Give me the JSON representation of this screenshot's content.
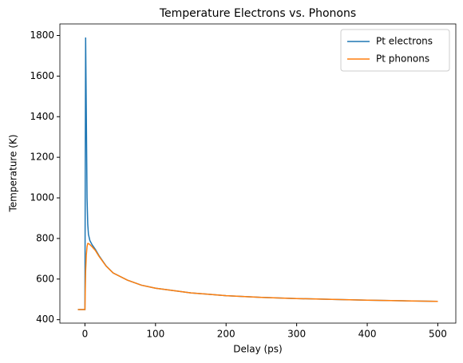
{
  "chart_data": {
    "type": "line",
    "title": "Temperature Electrons vs. Phonons",
    "xlabel": "Delay (ps)",
    "ylabel": "Temperature (K)",
    "x": [
      -10,
      -5,
      0,
      0.5,
      1,
      2,
      3,
      4,
      5,
      7,
      10,
      15,
      20,
      30,
      40,
      60,
      80,
      100,
      150,
      200,
      250,
      300,
      350,
      400,
      450,
      500
    ],
    "series": [
      {
        "name": "Pt electrons",
        "color": "#1f77b4",
        "values": [
          450,
          450,
          450,
          1200,
          1790,
          1400,
          1000,
          870,
          820,
          790,
          770,
          745,
          715,
          665,
          630,
          595,
          570,
          555,
          532,
          518,
          510,
          504,
          500,
          496,
          493,
          490
        ]
      },
      {
        "name": "Pt phonons",
        "color": "#ff7f0e",
        "values": [
          450,
          450,
          450,
          550,
          640,
          720,
          760,
          775,
          775,
          770,
          760,
          740,
          712,
          664,
          630,
          595,
          570,
          555,
          532,
          518,
          510,
          504,
          500,
          496,
          493,
          490
        ]
      }
    ],
    "xlim": [
      -35.5,
      525.5
    ],
    "xticks": [
      0,
      100,
      200,
      300,
      400,
      500
    ],
    "ylim": [
      383,
      1857
    ],
    "yticks": [
      400,
      600,
      800,
      1000,
      1200,
      1400,
      1600,
      1800
    ],
    "legend": "upper right"
  }
}
